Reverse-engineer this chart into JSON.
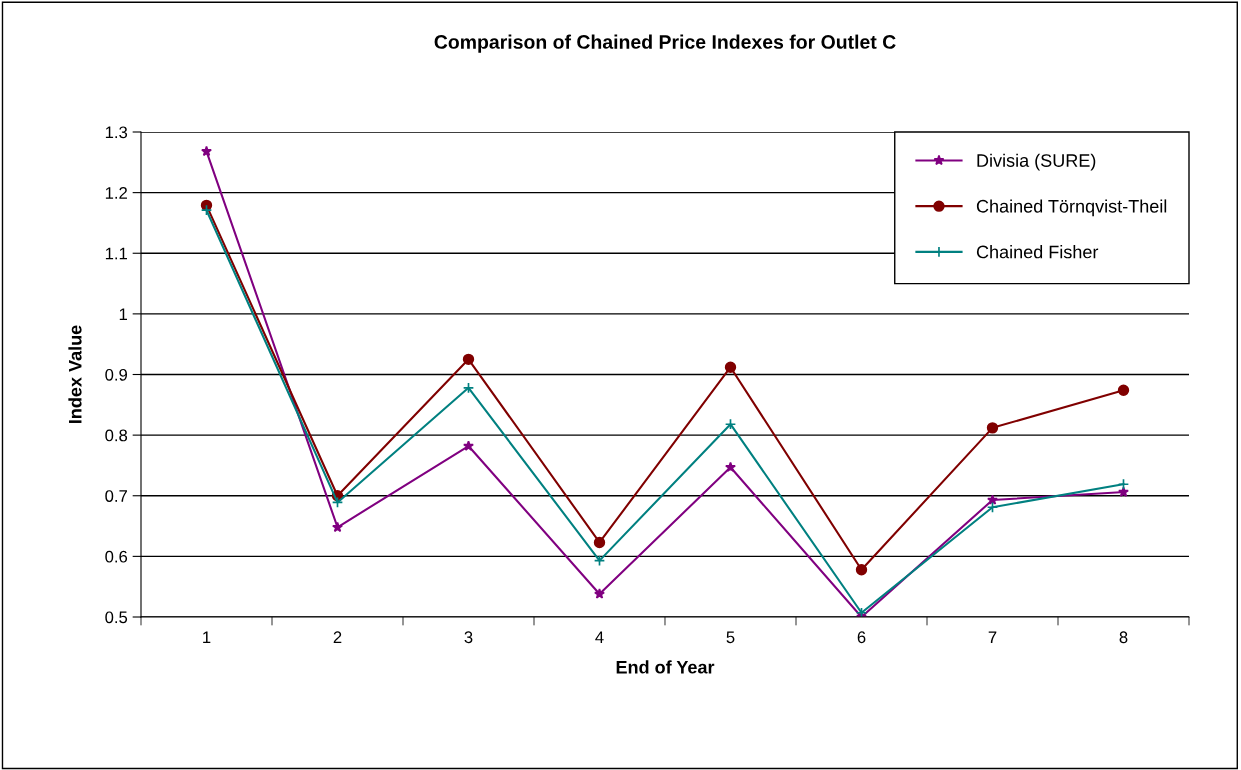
{
  "chart_data": {
    "type": "line",
    "title": "Comparison of Chained Price Indexes for Outlet C",
    "xlabel": "End of Year",
    "ylabel": "Index Value",
    "categories": [
      "1",
      "2",
      "3",
      "4",
      "5",
      "6",
      "7",
      "8"
    ],
    "series": [
      {
        "name": "Divisia (SURE)",
        "color": "#800080",
        "marker": "star",
        "values": [
          1.268,
          0.648,
          0.782,
          0.538,
          0.747,
          0.5,
          0.693,
          0.706
        ]
      },
      {
        "name": "Chained Törnqvist-Theil",
        "color": "#800000",
        "marker": "circle",
        "values": [
          1.179,
          0.7,
          0.925,
          0.623,
          0.912,
          0.578,
          0.812,
          0.874
        ]
      },
      {
        "name": "Chained Fisher",
        "color": "#008080",
        "marker": "cross",
        "values": [
          1.171,
          0.689,
          0.878,
          0.593,
          0.818,
          0.507,
          0.681,
          0.719
        ]
      }
    ],
    "ylim": [
      0.5,
      1.3
    ],
    "yticks": [
      0.5,
      0.6,
      0.7,
      0.8,
      0.9,
      1,
      1.1,
      1.2,
      1.3
    ],
    "grid": "y",
    "legend": "top right",
    "line_style": "solid"
  }
}
